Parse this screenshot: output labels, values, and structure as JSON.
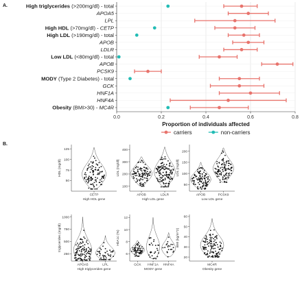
{
  "panel_a_label": "A.",
  "panel_b_label": "B.",
  "chart_data": [
    {
      "type": "forest",
      "xlabel": "Proportion of individuals affected",
      "xlim": [
        0,
        0.8
      ],
      "xticks": [
        "0.0",
        "0.2",
        "0.4",
        "0.6",
        "0.8"
      ],
      "legend": {
        "placement": "bottom",
        "entries": [
          {
            "name": "carriers",
            "color": "#e8736c"
          },
          {
            "name": "non-carriers",
            "color": "#22bcb5"
          }
        ]
      },
      "rows": [
        {
          "label": [
            {
              "t": "High triglycerides",
              "s": "b"
            },
            {
              "t": " (>200mg/dl) - total",
              "s": "n"
            }
          ],
          "series": "non-carriers",
          "est": 0.23,
          "lo": null,
          "hi": null
        },
        {
          "label": [
            {
              "t": "APOA5",
              "s": "i"
            }
          ],
          "series": "carriers",
          "est": 0.59,
          "lo": 0.5,
          "hi": 0.68
        },
        {
          "label": [
            {
              "t": "LPL",
              "s": "i"
            }
          ],
          "series": "carriers",
          "est": 0.53,
          "lo": 0.35,
          "hi": 0.71
        },
        {
          "label": [
            {
              "t": "High HDL",
              "s": "b"
            },
            {
              "t": " (>70mg/dl) - ",
              "s": "n"
            },
            {
              "t": "CETP",
              "s": "i"
            }
          ],
          "series": "non-carriers",
          "est": 0.17,
          "lo": null,
          "hi": null
        },
        {
          "label": [
            {
              "t": "High LDL",
              "s": "b"
            },
            {
              "t": " (>190mg/dl) - total",
              "s": "n"
            }
          ],
          "series": "non-carriers",
          "est": 0.09,
          "lo": null,
          "hi": null
        },
        {
          "label": [
            {
              "t": "APOB",
              "s": "i"
            }
          ],
          "series": "carriers",
          "est": 0.59,
          "lo": 0.52,
          "hi": 0.66
        },
        {
          "label": [
            {
              "t": "LDLR",
              "s": "i"
            }
          ],
          "series": "carriers",
          "est": 0.56,
          "lo": 0.48,
          "hi": 0.63
        },
        {
          "label": [
            {
              "t": "Low LDL",
              "s": "b"
            },
            {
              "t": " (<80mg/dl) - total",
              "s": "n"
            }
          ],
          "series": "non-carriers",
          "est": 0.01,
          "lo": null,
          "hi": null
        },
        {
          "label": [
            {
              "t": "APOB",
              "s": "i"
            }
          ],
          "series": "carriers",
          "est": 0.72,
          "lo": 0.65,
          "hi": 0.79
        },
        {
          "label": [
            {
              "t": "PCSK9",
              "s": "i"
            }
          ],
          "series": "carriers",
          "est": 0.14,
          "lo": 0.08,
          "hi": 0.2
        },
        {
          "label": [
            {
              "t": "MODY",
              "s": "b"
            },
            {
              "t": " (Type 2 Diabetes) - total",
              "s": "n"
            }
          ],
          "series": "non-carriers",
          "est": 0.06,
          "lo": null,
          "hi": null
        },
        {
          "label": [
            {
              "t": "GCK",
              "s": "i"
            }
          ],
          "series": "carriers",
          "est": 0.55,
          "lo": 0.42,
          "hi": 0.66
        },
        {
          "label": [
            {
              "t": "HNF1A",
              "s": "i"
            }
          ],
          "series": "carriers",
          "est": 0.6,
          "lo": 0.46,
          "hi": 0.73
        },
        {
          "label": [
            {
              "t": "HNF4A",
              "s": "i"
            }
          ],
          "series": "carriers",
          "est": 0.5,
          "lo": 0.24,
          "hi": 0.76
        },
        {
          "label": [
            {
              "t": "Obesity",
              "s": "b"
            },
            {
              "t": " (BMI>30) - ",
              "s": "n"
            },
            {
              "t": "MC4R",
              "s": "i"
            }
          ],
          "series": "non-carriers",
          "est": 0.23,
          "lo": null,
          "hi": null
        }
      ],
      "extra_marks": [
        {
          "row": 0,
          "series": "carriers",
          "est": 0.56,
          "lo": 0.48,
          "hi": 0.63
        },
        {
          "row": 3,
          "series": "carriers",
          "est": 0.53,
          "lo": 0.44,
          "hi": 0.62
        },
        {
          "row": 4,
          "series": "carriers",
          "est": 0.57,
          "lo": 0.5,
          "hi": 0.64
        },
        {
          "row": 7,
          "series": "carriers",
          "est": 0.46,
          "lo": 0.37,
          "hi": 0.54
        },
        {
          "row": 10,
          "series": "carriers",
          "est": 0.55,
          "lo": 0.46,
          "hi": 0.64
        },
        {
          "row": 14,
          "series": "carriers",
          "est": 0.46,
          "lo": 0.33,
          "hi": 0.59
        }
      ]
    },
    {
      "type": "violin",
      "ylabel": "HDL (mg/dl)",
      "xlabel": "High HDL gene",
      "yticks": [
        50,
        75,
        100,
        125
      ],
      "ylim": [
        25,
        135
      ],
      "groups": [
        {
          "name": "CETP",
          "median": 62,
          "min": 30,
          "max": 128,
          "n": 110
        }
      ]
    },
    {
      "type": "violin",
      "ylabel": "LDL (mg/dl)",
      "xlabel": "High LDL gene",
      "yticks": [
        100,
        200,
        300,
        400
      ],
      "ylim": [
        60,
        440
      ],
      "groups": [
        {
          "name": "APOB",
          "median": 200,
          "min": 100,
          "max": 340,
          "n": 110
        },
        {
          "name": "LDLR",
          "median": 210,
          "min": 95,
          "max": 420,
          "n": 130
        }
      ]
    },
    {
      "type": "violin",
      "ylabel": "LDL (mg/dl)",
      "xlabel": "Low LDL gene",
      "yticks": [
        50,
        100,
        150,
        200
      ],
      "ylim": [
        20,
        230
      ],
      "groups": [
        {
          "name": "APOB",
          "median": 70,
          "min": 30,
          "max": 150,
          "n": 110
        },
        {
          "name": "PCSK9",
          "median": 120,
          "min": 60,
          "max": 215,
          "n": 110
        }
      ]
    },
    {
      "type": "violin",
      "ylabel": "triglycerides (mg/dl)",
      "xlabel": "High triglycerides gene",
      "yticks": [
        250,
        500,
        750,
        1000
      ],
      "ylim": [
        100,
        1050
      ],
      "groups": [
        {
          "name": "APOA5",
          "median": 260,
          "min": 120,
          "max": 1000,
          "n": 110
        },
        {
          "name": "LPL",
          "median": 240,
          "min": 130,
          "max": 620,
          "n": 45
        }
      ]
    },
    {
      "type": "violin",
      "ylabel": "HbA1c (%)",
      "xlabel": "MODY gene",
      "yticks": [
        6,
        8,
        10,
        12
      ],
      "ylim": [
        4.8,
        12.5
      ],
      "groups": [
        {
          "name": "GCK",
          "median": 6.6,
          "min": 5.6,
          "max": 8.2,
          "n": 60
        },
        {
          "name": "HNF1A",
          "median": 6.8,
          "min": 5.2,
          "max": 12.0,
          "n": 30
        },
        {
          "name": "HNF4A",
          "median": 6.8,
          "min": 5.5,
          "max": 9.5,
          "n": 20
        }
      ]
    },
    {
      "type": "violin",
      "ylabel": "BMI (kg/m^2)",
      "xlabel": "Obesity gene",
      "yticks": [
        20,
        30,
        40,
        50,
        60
      ],
      "ylim": [
        16,
        62
      ],
      "groups": [
        {
          "name": "MC4R",
          "median": 30,
          "min": 20,
          "max": 58,
          "n": 120
        }
      ]
    }
  ]
}
